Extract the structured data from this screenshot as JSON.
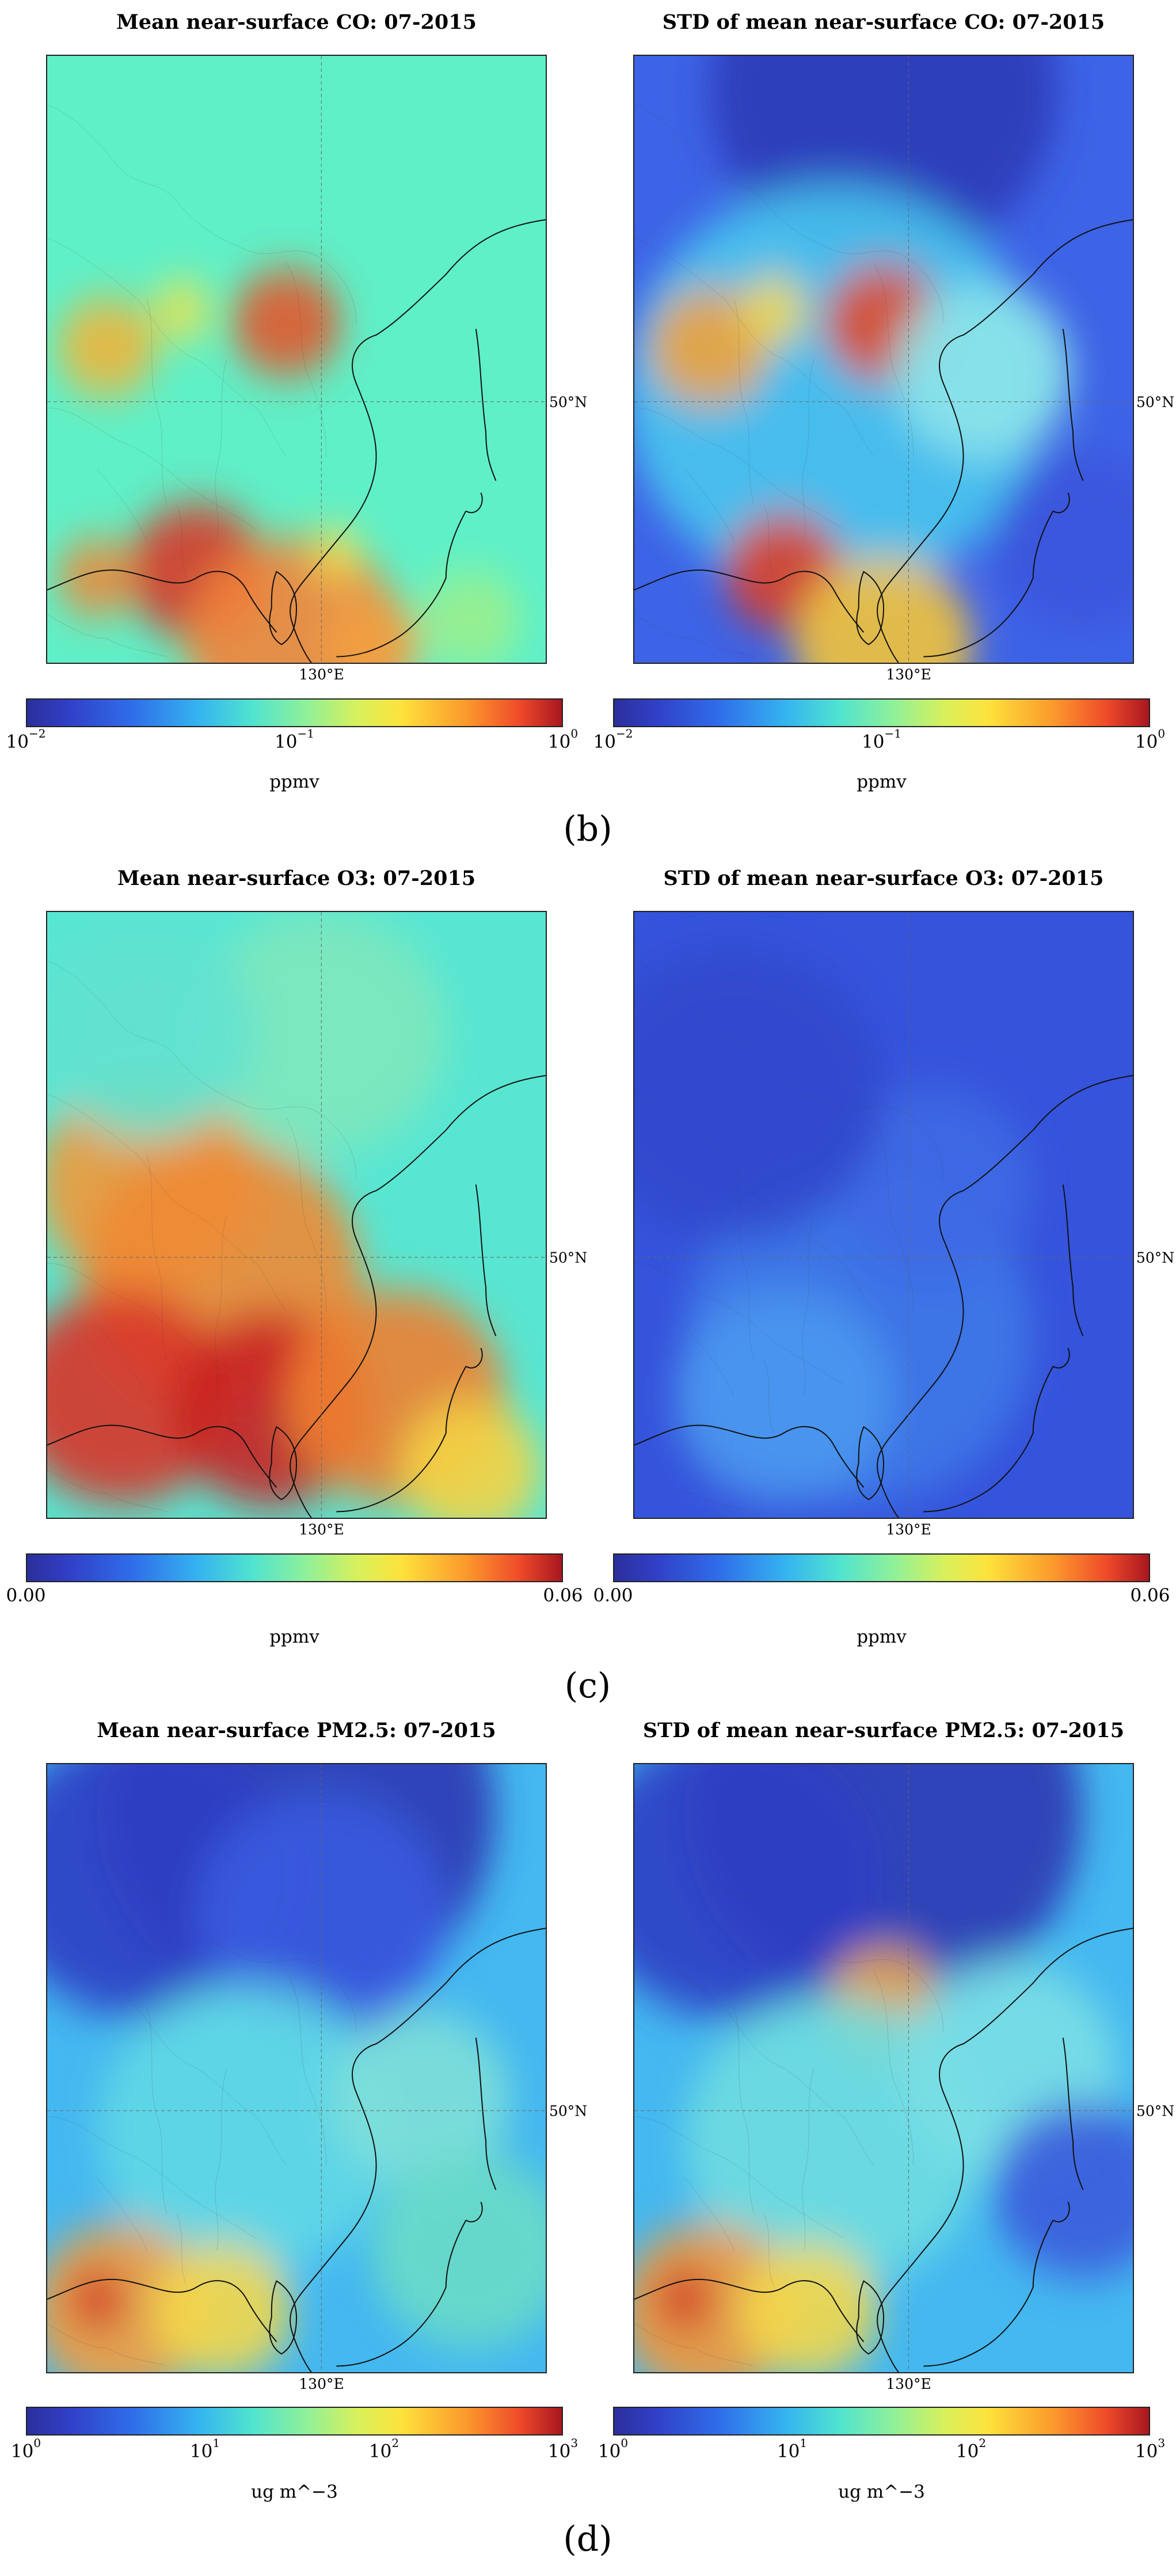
{
  "sections": [
    {
      "label": "(b)",
      "panels": [
        {
          "title": "Mean near-surface CO: 07-2015",
          "unit": "ppmv",
          "ticks": [
            [
              "10",
              "−2"
            ],
            [
              "10",
              "−1"
            ],
            [
              "10",
              "0"
            ]
          ],
          "scheme": "co_mean"
        },
        {
          "title": "STD of mean near-surface CO: 07-2015",
          "unit": "ppmv",
          "ticks": [
            [
              "10",
              "−2"
            ],
            [
              "10",
              "−1"
            ],
            [
              "10",
              "0"
            ]
          ],
          "scheme": "co_std"
        }
      ]
    },
    {
      "label": "(c)",
      "panels": [
        {
          "title": "Mean near-surface O3: 07-2015",
          "unit": "ppmv",
          "ticks": [
            [
              "0.00",
              ""
            ],
            [
              "0.06",
              ""
            ]
          ],
          "scheme": "o3_mean"
        },
        {
          "title": "STD of mean near-surface O3: 07-2015",
          "unit": "ppmv",
          "ticks": [
            [
              "0.00",
              ""
            ],
            [
              "0.06",
              ""
            ]
          ],
          "scheme": "o3_std"
        }
      ]
    },
    {
      "label": "(d)",
      "panels": [
        {
          "title": "Mean near-surface PM2.5: 07-2015",
          "unit": "ug m^−3",
          "ticks": [
            [
              "10",
              "0"
            ],
            [
              "10",
              "1"
            ],
            [
              "10",
              "2"
            ],
            [
              "10",
              "3"
            ]
          ],
          "scheme": "pm_mean"
        },
        {
          "title": "STD of mean near-surface PM2.5: 07-2015",
          "unit": "ug m^−3",
          "ticks": [
            [
              "10",
              "0"
            ],
            [
              "10",
              "1"
            ],
            [
              "10",
              "2"
            ],
            [
              "10",
              "3"
            ]
          ],
          "scheme": "pm_std"
        }
      ]
    }
  ],
  "lat_label": "50°N",
  "lon_label": "130°E",
  "colors": {
    "low": "#2f3fc4",
    "cyan": "#52e8d6",
    "green": "#8ef09a",
    "yellow": "#fde23c",
    "orange": "#fc8f2c",
    "red": "#c61f24"
  }
}
